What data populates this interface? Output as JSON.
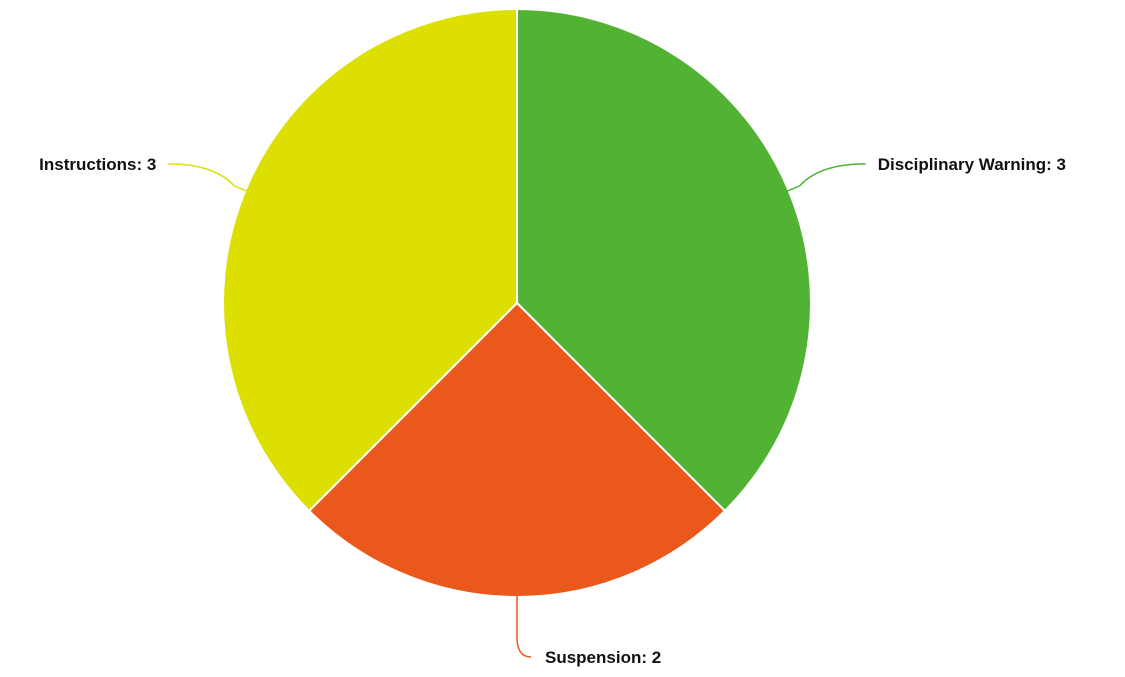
{
  "chart_data": {
    "type": "pie",
    "title": "",
    "categories": [
      "Disciplinary Warning",
      "Suspension",
      "Instructions"
    ],
    "values": [
      3,
      2,
      3
    ],
    "colors": [
      "#52b234",
      "#ea581c",
      "#dcdf00"
    ],
    "labels": [
      "Disciplinary Warning: 3",
      "Suspension: 2",
      "Instructions: 3"
    ],
    "start_angle_deg": 0,
    "direction": "clockwise",
    "legend": "none"
  }
}
